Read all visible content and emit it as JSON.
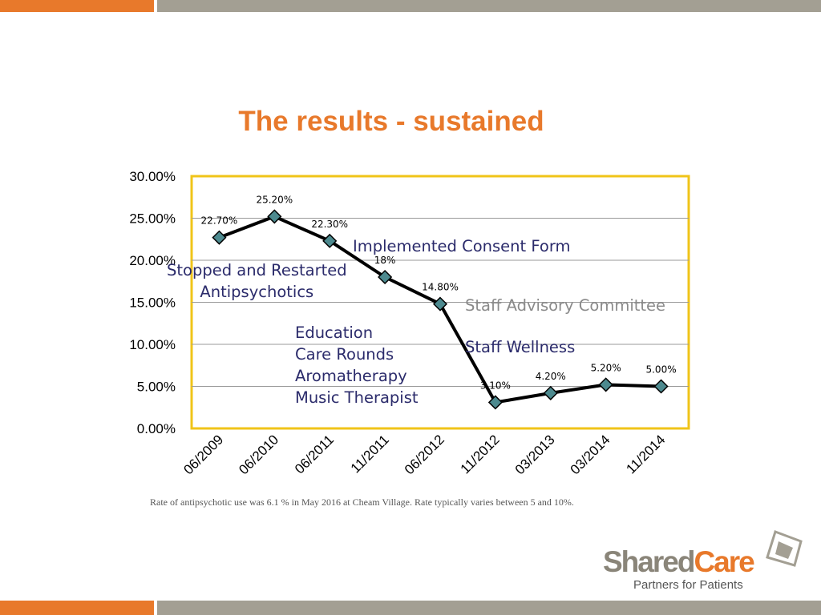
{
  "slide": {
    "title": "The results - sustained",
    "footnote": "Rate of antipsychotic use was 6.1 % in May 2016 at Cheam Village.  Rate typically varies between 5 and 10%."
  },
  "annotations": {
    "consent": "Implemented Consent Form",
    "stopped_line1": "Stopped and Restarted",
    "stopped_line2": "Antipsychotics",
    "advisory": "Staff Advisory Committee",
    "wellness": "Staff Wellness",
    "list": [
      "Education",
      "Care Rounds",
      "Aromatherapy",
      "Music Therapist"
    ]
  },
  "logo": {
    "shared": "Shared",
    "care": "Care",
    "tagline": "Partners for Patients"
  },
  "colors": {
    "accent_orange": "#e8792b",
    "bar_gray": "#a39f93",
    "plot_border": "#f0c419",
    "marker_fill": "#4d8a8f",
    "line": "#000000"
  },
  "chart_data": {
    "type": "line",
    "categories": [
      "06/2009",
      "06/2010",
      "06/2011",
      "11/2011",
      "06/2012",
      "11/2012",
      "03/2013",
      "03/2014",
      "11/2014"
    ],
    "values": [
      22.7,
      25.2,
      22.3,
      18,
      14.8,
      3.1,
      4.2,
      5.2,
      5.0
    ],
    "data_labels": [
      "22.70%",
      "25.20%",
      "22.30%",
      "18%",
      "14.80%",
      "3.10%",
      "4.20%",
      "5.20%",
      "5.00%"
    ],
    "y_ticks": [
      "0.00%",
      "5.00%",
      "10.00%",
      "15.00%",
      "20.00%",
      "25.00%",
      "30.00%"
    ],
    "ylim": [
      0,
      30
    ],
    "grid": true,
    "legend": "none",
    "marker": "diamond"
  }
}
